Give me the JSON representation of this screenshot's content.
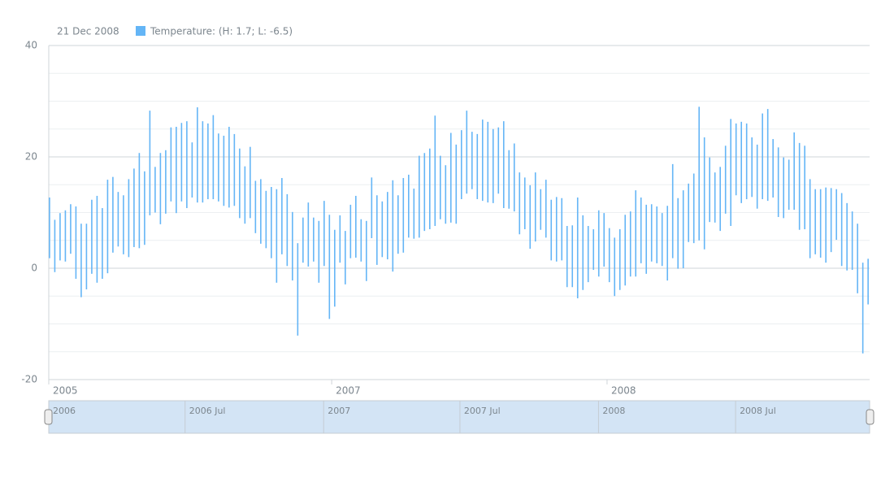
{
  "chart_data": {
    "type": "range-column",
    "legend": {
      "date": "21 Dec 2008",
      "label": "Temperature: (H: 1.7; L: -6.5)"
    },
    "x": [
      "2006-01-01",
      "2006-01-08",
      "2006-01-15",
      "2006-01-22",
      "2006-01-29",
      "2006-02-05",
      "2006-02-12",
      "2006-02-19",
      "2006-02-26",
      "2006-03-05",
      "2006-03-12",
      "2006-03-19",
      "2006-03-26",
      "2006-04-02",
      "2006-04-09",
      "2006-04-16",
      "2006-04-23",
      "2006-04-30",
      "2006-05-07",
      "2006-05-14",
      "2006-05-21",
      "2006-05-28",
      "2006-06-04",
      "2006-06-11",
      "2006-06-18",
      "2006-06-25",
      "2006-07-02",
      "2006-07-09",
      "2006-07-16",
      "2006-07-23",
      "2006-07-30",
      "2006-08-06",
      "2006-08-13",
      "2006-08-20",
      "2006-08-27",
      "2006-09-03",
      "2006-09-10",
      "2006-09-17",
      "2006-09-24",
      "2006-10-01",
      "2006-10-08",
      "2006-10-15",
      "2006-10-22",
      "2006-10-29",
      "2006-11-05",
      "2006-11-12",
      "2006-11-19",
      "2006-11-26",
      "2006-12-03",
      "2006-12-10",
      "2006-12-17",
      "2006-12-24",
      "2006-12-31",
      "2007-01-07",
      "2007-01-14",
      "2007-01-21",
      "2007-01-28",
      "2007-02-04",
      "2007-02-11",
      "2007-02-18",
      "2007-02-25",
      "2007-03-04",
      "2007-03-11",
      "2007-03-18",
      "2007-03-25",
      "2007-04-01",
      "2007-04-08",
      "2007-04-15",
      "2007-04-22",
      "2007-04-29",
      "2007-05-06",
      "2007-05-13",
      "2007-05-20",
      "2007-05-27",
      "2007-06-03",
      "2007-06-10",
      "2007-06-17",
      "2007-06-24",
      "2007-07-01",
      "2007-07-08",
      "2007-07-15",
      "2007-07-22",
      "2007-07-29",
      "2007-08-05",
      "2007-08-12",
      "2007-08-19",
      "2007-08-26",
      "2007-09-02",
      "2007-09-09",
      "2007-09-16",
      "2007-09-23",
      "2007-09-30",
      "2007-10-07",
      "2007-10-14",
      "2007-10-21",
      "2007-10-28",
      "2007-11-04",
      "2007-11-11",
      "2007-11-18",
      "2007-11-25",
      "2007-12-02",
      "2007-12-09",
      "2007-12-16",
      "2007-12-23",
      "2007-12-30",
      "2008-01-06",
      "2008-01-13",
      "2008-01-20",
      "2008-01-27",
      "2008-02-03",
      "2008-02-10",
      "2008-02-17",
      "2008-02-24",
      "2008-03-02",
      "2008-03-09",
      "2008-03-16",
      "2008-03-23",
      "2008-03-30",
      "2008-04-06",
      "2008-04-13",
      "2008-04-20",
      "2008-04-27",
      "2008-05-04",
      "2008-05-11",
      "2008-05-18",
      "2008-05-25",
      "2008-06-01",
      "2008-06-08",
      "2008-06-15",
      "2008-06-22",
      "2008-06-29",
      "2008-07-06",
      "2008-07-13",
      "2008-07-20",
      "2008-07-27",
      "2008-08-03",
      "2008-08-10",
      "2008-08-17",
      "2008-08-24",
      "2008-08-31",
      "2008-09-07",
      "2008-09-14",
      "2008-09-21",
      "2008-09-28",
      "2008-10-05",
      "2008-10-12",
      "2008-10-19",
      "2008-10-26",
      "2008-11-02",
      "2008-11-09",
      "2008-11-16",
      "2008-11-23",
      "2008-11-30",
      "2008-12-07",
      "2008-12-14",
      "2008-12-21"
    ],
    "series": [
      {
        "name": "Temperature",
        "color": "#64b5f6",
        "high": [
          12.7,
          8.7,
          9.9,
          10.4,
          11.5,
          11.1,
          8,
          8,
          12.3,
          13,
          10.8,
          15.9,
          16.4,
          13.7,
          13.1,
          16,
          17.9,
          20.7,
          17.4,
          28.3,
          18.2,
          20.7,
          21.2,
          25.3,
          25.4,
          26.1,
          26.4,
          22.6,
          28.9,
          26.4,
          26,
          27.5,
          24.2,
          23.8,
          25.4,
          24.1,
          21.5,
          18.3,
          21.8,
          15.7,
          16,
          13.9,
          14.6,
          14.2,
          16.2,
          13.3,
          10.1,
          4.5,
          9.1,
          11.8,
          9.1,
          8.5,
          12.1,
          9.6,
          6.9,
          9.5,
          6.7,
          11.4,
          13,
          8.8,
          8.5,
          16.3,
          13.1,
          12,
          13.7,
          15.8,
          13.1,
          16.2,
          16.8,
          14.3,
          20.2,
          20.7,
          21.5,
          27.4,
          20.2,
          18.5,
          24.3,
          22.2,
          24.8,
          28.3,
          24.5,
          24.1,
          26.7,
          26.3,
          25,
          25.3,
          26.4,
          21.2,
          22.4,
          17.2,
          16.3,
          14.9,
          17.2,
          14.2,
          15.9,
          12.3,
          12.8,
          12.6,
          7.6,
          7.7,
          12.7,
          9.5,
          7.6,
          7,
          10.4,
          9.9,
          7.2,
          5.5,
          7,
          9.6,
          10.2,
          14,
          12.7,
          11.4,
          11.5,
          11.1,
          9.9,
          11.2,
          18.7,
          12.6,
          14,
          15.2,
          17,
          29,
          23.5,
          19.9,
          17.2,
          18.2,
          22,
          26.8,
          26,
          26.3,
          26,
          23.5,
          22.2,
          27.8,
          28.6,
          23.2,
          21.7,
          19.9,
          19.5,
          24.4,
          22.5,
          22,
          16,
          14.2,
          14.2,
          14.5,
          14.4,
          14.2,
          13.5,
          11.7,
          10.2,
          8,
          1,
          1.7
        ],
        "low": [
          1.8,
          -0.7,
          1.4,
          1.2,
          2.6,
          -1.9,
          -5.2,
          -3.8,
          -1,
          -2.6,
          -1.9,
          -0.9,
          2.8,
          3.9,
          2.5,
          2,
          3.8,
          3.6,
          4.2,
          9.5,
          10,
          7.9,
          9.8,
          12,
          9.9,
          12,
          10.8,
          12.7,
          11.8,
          11.8,
          12.4,
          12.4,
          12,
          11.2,
          10.9,
          11.2,
          9,
          8,
          9,
          6.3,
          4.4,
          3.6,
          1.8,
          -2.6,
          2.5,
          0.4,
          -2.2,
          -12.1,
          1,
          0.3,
          1.2,
          -2.6,
          0.4,
          -9.1,
          -6.9,
          1,
          -2.9,
          1.8,
          1.9,
          1.2,
          -2.3,
          5.4,
          0.6,
          2,
          1.6,
          -0.6,
          2.6,
          2.8,
          5.5,
          5.3,
          5.5,
          6.7,
          7,
          7.6,
          8.8,
          8,
          8.2,
          8,
          12.4,
          13.4,
          14.2,
          12.4,
          12.1,
          11.8,
          11.7,
          13.4,
          10.8,
          10.7,
          10.2,
          6.1,
          7,
          3.5,
          4.8,
          6.9,
          5.5,
          1.4,
          1.2,
          1.4,
          -3.4,
          -3.4,
          -5.4,
          -3.9,
          -2.5,
          -0.3,
          -1.5,
          0.3,
          -2.5,
          -5,
          -3.9,
          -3.1,
          -1.5,
          -1.5,
          0.9,
          -1,
          1.2,
          0.9,
          0.4,
          -2.2,
          1.8,
          -0.1,
          0,
          4.7,
          4.5,
          5,
          3.4,
          8.3,
          8.2,
          6.7,
          9.8,
          7.6,
          13.1,
          11.7,
          12.4,
          12.8,
          10.7,
          12.4,
          12.1,
          12.7,
          9.2,
          9,
          10.5,
          10.5,
          6.9,
          7,
          1.8,
          2.5,
          1.9,
          1,
          2.9,
          5.1,
          0.4,
          -0.4,
          -0.3,
          -4.5,
          -15.3,
          -6.5
        ]
      }
    ],
    "xlim": [
      "2005-12-31",
      "2008-12-23"
    ],
    "xticks": [
      {
        "value": "2005-12-31",
        "label": "2005"
      },
      {
        "value": "2007-01-10",
        "label": "2007"
      },
      {
        "value": "2008-01-10",
        "label": "2008"
      }
    ],
    "ylim": [
      -20,
      40
    ],
    "yticks": [
      -20,
      0,
      20,
      40
    ],
    "minor_yticks": [
      -15,
      -10,
      -5,
      5,
      10,
      15,
      25,
      30,
      35
    ],
    "grid": true,
    "scroller": {
      "xlim": [
        "2006-01-01",
        "2008-12-26"
      ],
      "xticks": [
        {
          "value": "2006-01-01",
          "label": "2006"
        },
        {
          "value": "2006-07-01",
          "label": "2006 Jul"
        },
        {
          "value": "2007-01-01",
          "label": "2007"
        },
        {
          "value": "2007-07-01",
          "label": "2007 Jul"
        },
        {
          "value": "2008-01-01",
          "label": "2008"
        },
        {
          "value": "2008-07-01",
          "label": "2008 Jul"
        }
      ]
    }
  }
}
